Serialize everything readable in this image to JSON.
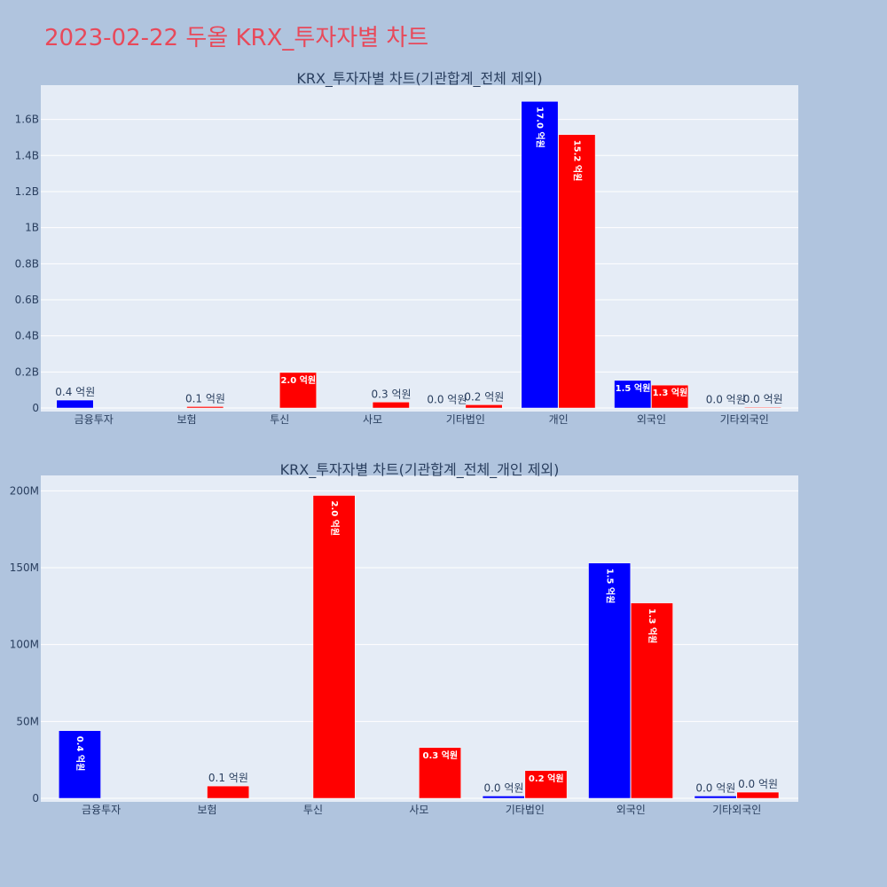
{
  "title": "2023-02-22 두올 KRX_투자자별 차트",
  "colors": {
    "buy": "#0000ff",
    "sell": "#ff0000",
    "plot_bg": "#e5ecf6",
    "page_bg": "#b0c4de",
    "title": "#e8495a"
  },
  "chart_data": [
    {
      "type": "bar",
      "title": "KRX_투자자별 차트(기관합계_전체 제외)",
      "categories": [
        "금융투자",
        "보험",
        "투신",
        "사모",
        "기타법인",
        "개인",
        "외국인",
        "기타외국인"
      ],
      "ylim": [
        0,
        1790000000
      ],
      "yticks": [
        0,
        200000000,
        400000000,
        600000000,
        800000000,
        1000000000,
        1200000000,
        1400000000,
        1600000000
      ],
      "yticklabels": [
        "0",
        "0.2B",
        "0.4B",
        "0.6B",
        "0.8B",
        "1B",
        "1.2B",
        "1.4B",
        "1.6B"
      ],
      "grid": true,
      "series": [
        {
          "color": "#0000ff",
          "values": [
            44000000,
            0,
            0,
            0,
            1500000,
            1700000000,
            153000000,
            1500000
          ],
          "labels": [
            "0.4 억원",
            "",
            "",
            "",
            "0.0 억원",
            "17.0 억원",
            "1.5 억원",
            "0.0 억원"
          ]
        },
        {
          "color": "#ff0000",
          "values": [
            0,
            8000000,
            197000000,
            33000000,
            18000000,
            1516000000,
            127000000,
            4000000
          ],
          "labels": [
            "",
            "0.1 억원",
            "2.0 억원",
            "0.3 억원",
            "0.2 억원",
            "15.2 억원",
            "1.3 억원",
            "0.0 억원"
          ]
        }
      ]
    },
    {
      "type": "bar",
      "title": "KRX_투자자별 차트(기관합계_전체_개인 제외)",
      "categories": [
        "금융투자",
        "보험",
        "투신",
        "사모",
        "기타법인",
        "외국인",
        "기타외국인"
      ],
      "ylim": [
        0,
        210000000
      ],
      "yticks": [
        0,
        50000000,
        100000000,
        150000000,
        200000000
      ],
      "yticklabels": [
        "0",
        "50M",
        "100M",
        "150M",
        "200M"
      ],
      "grid": true,
      "series": [
        {
          "color": "#0000ff",
          "values": [
            44000000,
            0,
            0,
            0,
            1500000,
            153000000,
            1500000
          ],
          "labels": [
            "0.4 억원",
            "",
            "",
            "",
            "0.0 억원",
            "1.5 억원",
            "0.0 억원"
          ]
        },
        {
          "color": "#ff0000",
          "values": [
            0,
            8000000,
            197000000,
            33000000,
            18000000,
            127000000,
            4000000
          ],
          "labels": [
            "",
            "0.1 억원",
            "2.0 억원",
            "0.3 억원",
            "0.2 억원",
            "1.3 억원",
            "0.0 억원"
          ]
        }
      ]
    }
  ]
}
